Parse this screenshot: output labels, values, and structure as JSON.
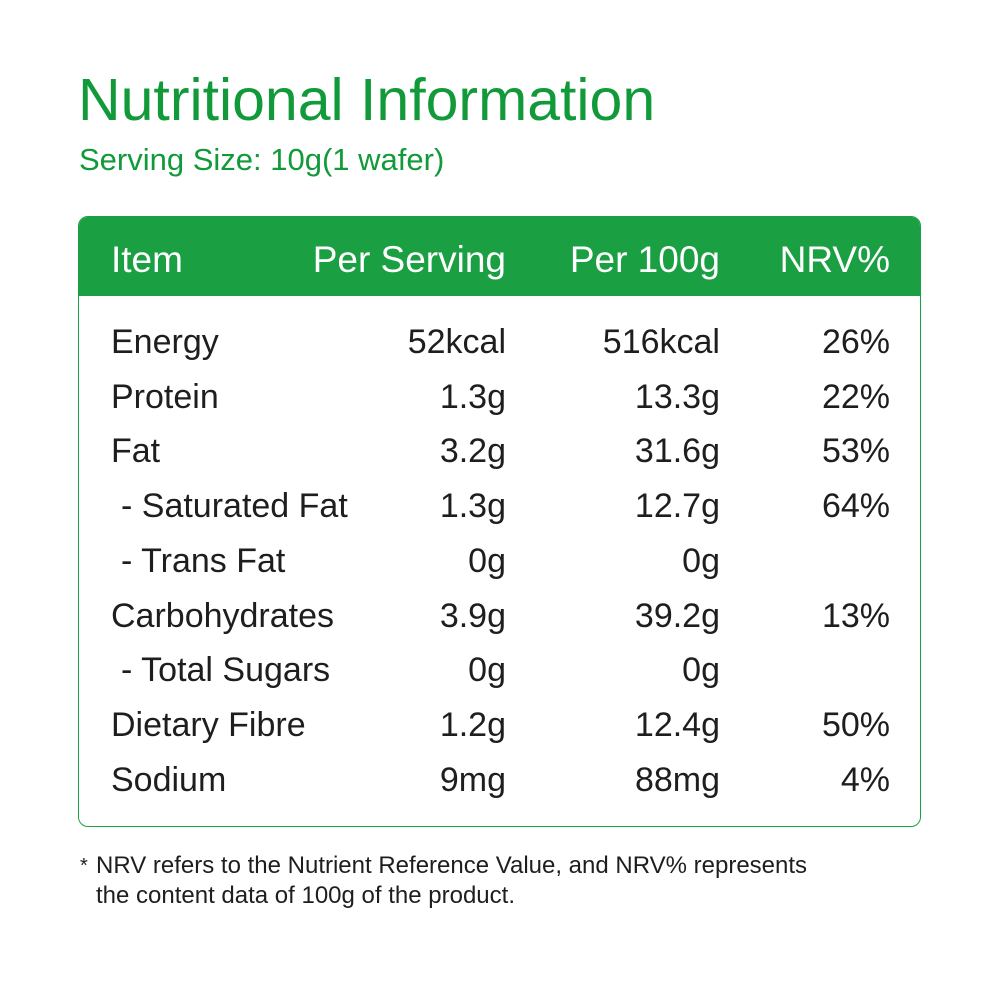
{
  "header": {
    "title": "Nutritional Information",
    "subtitle": "Serving Size: 10g(1 wafer)"
  },
  "table": {
    "columns": [
      "Item",
      "Per Serving",
      "Per 100g",
      "NRV%"
    ],
    "rows": [
      [
        "Energy",
        "52kcal",
        "516kcal",
        "26%"
      ],
      [
        "Protein",
        "1.3g",
        "13.3g",
        "22%"
      ],
      [
        "Fat",
        "3.2g",
        "31.6g",
        "53%"
      ],
      [
        "- Saturated Fat",
        "1.3g",
        "12.7g",
        "64%"
      ],
      [
        "- Trans Fat",
        "0g",
        "0g"
      ],
      [
        "Carbohydrates",
        "3.9g",
        "39.2g",
        "13%"
      ],
      [
        "- Total Sugars",
        "0g",
        "0g"
      ],
      [
        "Dietary Fibre",
        "1.2g",
        "12.4g",
        "50%"
      ],
      [
        "Sodium",
        "9mg",
        "88mg",
        "4%"
      ]
    ]
  },
  "footnote": {
    "marker": "*",
    "lines": [
      "NRV refers to the Nutrient Reference Value, and NRV% represents",
      "the content data of 100g of the product."
    ]
  }
}
